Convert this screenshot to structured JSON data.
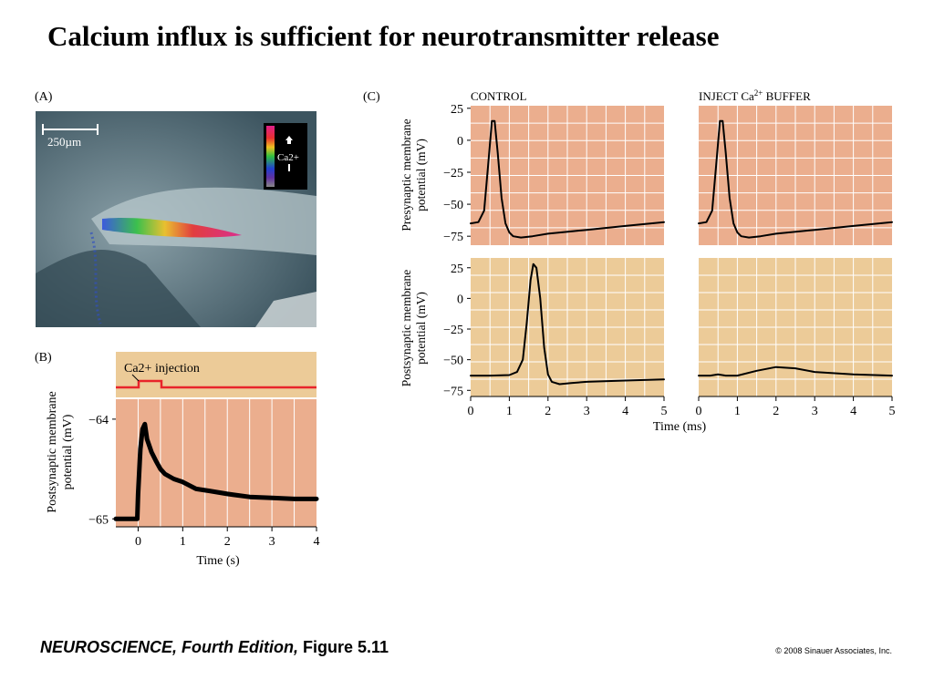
{
  "title": "Calcium influx is sufficient for neurotransmitter release",
  "footer": {
    "book": "NEUROSCIENCE, Fourth Edition,",
    "figure": "Figure 5.11",
    "copyright": "© 2008 Sinauer Associates, Inc."
  },
  "colors": {
    "pink_bg": "#ebae8e",
    "tan_bg": "#eccb98",
    "grid": "#ffffff",
    "trace": "#000000",
    "injection_line": "#e8242b"
  },
  "panel_a": {
    "label": "(A)",
    "scale_bar": "250µm",
    "legend_label": "Ca2+"
  },
  "panel_b": {
    "label": "(B)",
    "injection_label": "Ca2+ injection",
    "ylabel_line1": "Postsynaptic membrane",
    "ylabel_line2": "potential (mV)",
    "xlabel": "Time (s)"
  },
  "panel_c": {
    "label": "(C)",
    "col_titles": [
      "CONTROL",
      "INJECT Ca2+ BUFFER"
    ],
    "ylabel_top_line1": "Presynaptic membrane",
    "ylabel_top_line2": "potential (mV)",
    "ylabel_bottom_line1": "Postsynaptic membrane",
    "ylabel_bottom_line2": "potential (mV)",
    "xlabel": "Time (ms)"
  },
  "chart_data": [
    {
      "panel": "B",
      "type": "line",
      "xlabel": "Time (s)",
      "ylabel": "Postsynaptic membrane potential (mV)",
      "xlim": [
        -0.5,
        4
      ],
      "ylim": [
        -65.08,
        -63.8
      ],
      "xticks": [
        0,
        1,
        2,
        3,
        4
      ],
      "yticks": [
        -64,
        -65
      ],
      "injection_pulse": {
        "label": "Ca2+ injection",
        "start": 0,
        "end": 0.5
      },
      "series": [
        {
          "x": [
            -0.5,
            -0.02,
            0.0,
            0.05,
            0.1,
            0.15,
            0.2,
            0.3,
            0.4,
            0.5,
            0.6,
            0.8,
            1.0,
            1.3,
            1.6,
            2.0,
            2.5,
            3.0,
            3.5,
            4.0
          ],
          "y": [
            -65.0,
            -65.0,
            -64.75,
            -64.3,
            -64.1,
            -64.05,
            -64.2,
            -64.33,
            -64.42,
            -64.5,
            -64.55,
            -64.6,
            -64.63,
            -64.7,
            -64.72,
            -64.75,
            -64.78,
            -64.79,
            -64.8,
            -64.8
          ]
        }
      ]
    },
    {
      "panel": "C-control-presynaptic",
      "type": "line",
      "title": "CONTROL",
      "ylabel": "Presynaptic membrane potential (mV)",
      "xlim": [
        0,
        5
      ],
      "ylim": [
        -82,
        27
      ],
      "yticks": [
        25,
        0,
        -25,
        -50,
        -75
      ],
      "series": [
        {
          "x": [
            0,
            0.2,
            0.35,
            0.45,
            0.55,
            0.62,
            0.7,
            0.8,
            0.9,
            1.0,
            1.1,
            1.3,
            1.6,
            2.0,
            3.0,
            4.0,
            5.0
          ],
          "y": [
            -65,
            -64,
            -55,
            -20,
            15,
            15,
            -10,
            -45,
            -65,
            -72,
            -75,
            -76,
            -75,
            -73,
            -70,
            -67,
            -64
          ]
        }
      ]
    },
    {
      "panel": "C-buffer-presynaptic",
      "type": "line",
      "title": "INJECT Ca2+ BUFFER",
      "xlim": [
        0,
        5
      ],
      "ylim": [
        -82,
        27
      ],
      "series": [
        {
          "x": [
            0,
            0.2,
            0.35,
            0.45,
            0.55,
            0.62,
            0.7,
            0.8,
            0.9,
            1.0,
            1.1,
            1.3,
            1.6,
            2.0,
            3.0,
            4.0,
            5.0
          ],
          "y": [
            -65,
            -64,
            -55,
            -20,
            15,
            15,
            -10,
            -45,
            -65,
            -72,
            -75,
            -76,
            -75,
            -73,
            -70,
            -67,
            -64
          ]
        }
      ]
    },
    {
      "panel": "C-control-postsynaptic",
      "type": "line",
      "xlabel": "Time (ms)",
      "ylabel": "Postsynaptic membrane potential (mV)",
      "xlim": [
        0,
        5
      ],
      "ylim": [
        -80,
        33
      ],
      "xticks": [
        0,
        1,
        2,
        3,
        4,
        5
      ],
      "yticks": [
        25,
        0,
        -25,
        -50,
        -75
      ],
      "series": [
        {
          "x": [
            0,
            0.5,
            1.0,
            1.2,
            1.35,
            1.45,
            1.55,
            1.62,
            1.7,
            1.8,
            1.9,
            2.0,
            2.1,
            2.3,
            2.6,
            3.0,
            4.0,
            5.0
          ],
          "y": [
            -63,
            -63,
            -62.5,
            -60,
            -50,
            -20,
            15,
            28,
            25,
            0,
            -40,
            -62,
            -68,
            -70,
            -69,
            -68,
            -67,
            -66
          ]
        }
      ]
    },
    {
      "panel": "C-buffer-postsynaptic",
      "type": "line",
      "xlabel": "Time (ms)",
      "xlim": [
        0,
        5
      ],
      "ylim": [
        -80,
        33
      ],
      "xticks": [
        0,
        1,
        2,
        3,
        4,
        5
      ],
      "series": [
        {
          "x": [
            0,
            0.3,
            0.5,
            0.7,
            1.0,
            1.5,
            2.0,
            2.5,
            3.0,
            4.0,
            5.0
          ],
          "y": [
            -63,
            -63,
            -62,
            -63,
            -63,
            -59,
            -56,
            -57,
            -60,
            -62,
            -63
          ]
        }
      ]
    }
  ]
}
